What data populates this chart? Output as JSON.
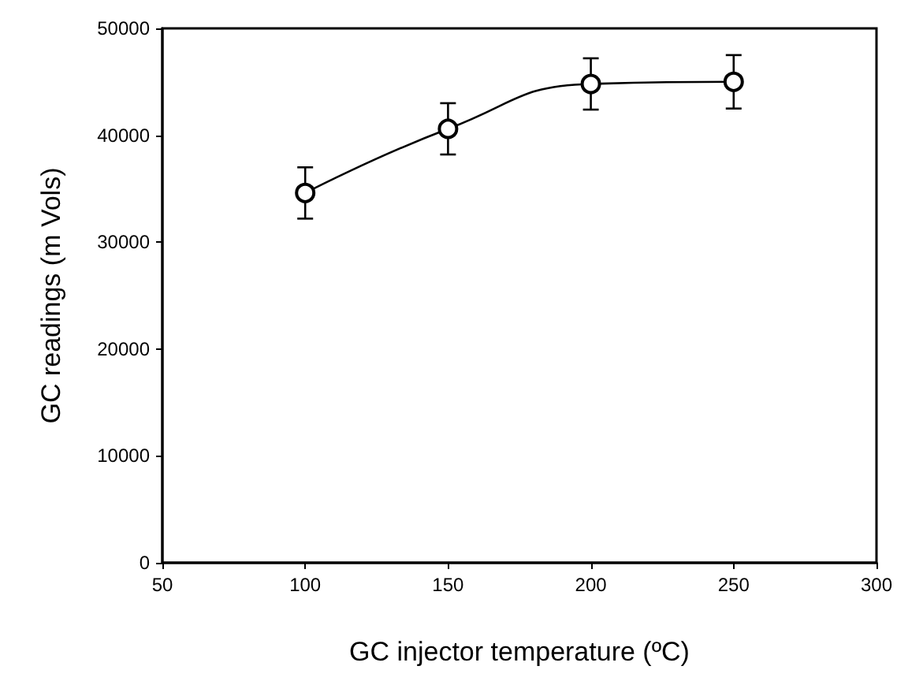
{
  "chart_data": {
    "type": "line",
    "xlabel": "GC injector temperature (ºC)",
    "ylabel": "GC readings (m Vols)",
    "x": [
      100,
      150,
      200,
      250
    ],
    "series": [
      {
        "color": "#000000",
        "values": [
          34600,
          40600,
          44800,
          45000
        ],
        "errors": [
          2400,
          2400,
          2400,
          2500
        ]
      }
    ],
    "xlim": [
      50,
      300
    ],
    "xticks": [
      50,
      100,
      150,
      200,
      250,
      300
    ],
    "ylim": [
      0,
      50000
    ],
    "yticks": [
      0,
      10000,
      20000,
      30000,
      40000,
      50000
    ],
    "grid": false,
    "marker": "circle",
    "line_style": "solid"
  }
}
